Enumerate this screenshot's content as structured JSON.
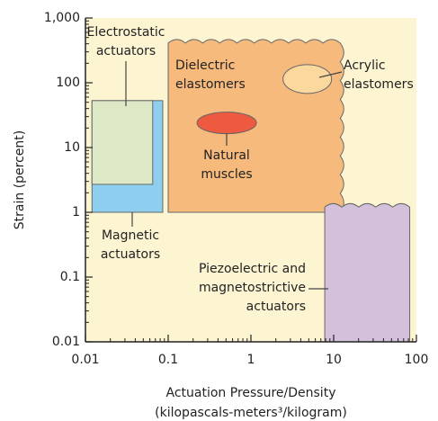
{
  "chart_data": {
    "type": "region",
    "x_label_lines": [
      "Actuation Pressure/Density",
      "(kilopascals-meters³/kilogram)"
    ],
    "y_label": "Strain (percent)",
    "xscale": "log",
    "yscale": "log",
    "xlim": [
      0.01,
      100
    ],
    "ylim": [
      0.01,
      1000
    ],
    "xticks": [
      0.01,
      0.1,
      1,
      10,
      100
    ],
    "yticks": [
      0.01,
      0.1,
      1,
      10,
      100,
      {
        "value": 1000,
        "label": "1,000"
      }
    ],
    "background": "#fdf5d2",
    "regions": [
      {
        "label_lines": [
          "Magnetic",
          "actuators"
        ],
        "shape": "rect",
        "xlim": [
          0.012,
          0.086
        ],
        "ylim": [
          1,
          53
        ],
        "color": "#8ecff0"
      },
      {
        "label_lines": [
          "Electrostatic",
          "actuators"
        ],
        "shape": "rect",
        "xlim": [
          0.012,
          0.065
        ],
        "ylim": [
          2.7,
          53
        ],
        "color": "#dde9c6"
      },
      {
        "label_lines": [
          "Dielectric",
          "elastomers"
        ],
        "shape": "wavy",
        "xlim": [
          0.1,
          12
        ],
        "ylim": [
          1,
          410
        ],
        "color": "#f6ba7d"
      },
      {
        "label_lines": [
          "Piezoelectric and",
          "magnetostrictive",
          "actuators"
        ],
        "shape": "wavy-top",
        "xlim": [
          7.8,
          83
        ],
        "ylim": [
          0.01,
          1.2
        ],
        "color": "#d5c0dc"
      },
      {
        "label_lines": [
          "Natural",
          "muscles"
        ],
        "shape": "ellipse",
        "x": 0.51,
        "y": 24,
        "color": "#ee5a40"
      },
      {
        "label_lines": [
          "Acrylic",
          "elastomers"
        ],
        "shape": "ellipse",
        "x": 4.8,
        "y": 114,
        "color": "#fbd89e"
      }
    ]
  }
}
